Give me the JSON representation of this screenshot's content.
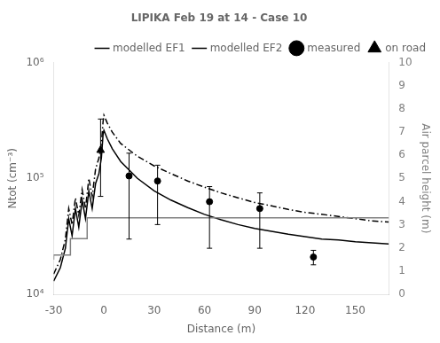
{
  "chart_data": {
    "type": "line",
    "title": "LIPIKA Feb 19 at 14 - Case 10",
    "x_label": "Distance (m)",
    "y_label": "Ntot (cm⁻³)",
    "y2_label": "Air parcel height (m)",
    "xlim": [
      -30,
      170
    ],
    "xticks": [
      -30,
      0,
      30,
      60,
      90,
      120,
      150
    ],
    "ylim": [
      10000,
      1000000
    ],
    "yticks": [
      {
        "value": 10000,
        "label": "10⁴"
      },
      {
        "value": 100000,
        "label": "10⁵"
      },
      {
        "value": 1000000,
        "label": "10⁶"
      }
    ],
    "y2lim": [
      0,
      10
    ],
    "y2ticks": [
      0,
      1,
      2,
      3,
      4,
      5,
      6,
      7,
      8,
      9,
      10
    ],
    "log": "y",
    "grid": false,
    "legend": "upper right",
    "series": [
      {
        "type": "line",
        "axis": "y2",
        "color": "#808080",
        "line_style": "solid",
        "x": [
          -30,
          -30,
          -20,
          -20,
          -10,
          -10,
          0,
          0,
          170
        ],
        "values": [
          1.5,
          1.7,
          1.7,
          2.4,
          2.4,
          3.3,
          3.3,
          3.3,
          3.3
        ]
      },
      {
        "name": "modelled EF1",
        "type": "line",
        "color": "#000000",
        "line_style": "solid",
        "x": [
          -30,
          -26,
          -23,
          -21,
          -19,
          -17,
          -15,
          -13,
          -11,
          -9,
          -7,
          -5,
          -3,
          -1.5,
          -0.5,
          0,
          2,
          5,
          10,
          20,
          30,
          40,
          50,
          60,
          70,
          80,
          90,
          100,
          110,
          120,
          130,
          140,
          150,
          160,
          170
        ],
        "values": [
          13000,
          17000,
          25000,
          45000,
          32000,
          55000,
          38000,
          65000,
          45000,
          78000,
          55000,
          90000,
          110000,
          150000,
          240000,
          260000,
          220000,
          180000,
          140000,
          100000,
          78000,
          65000,
          56000,
          49000,
          44000,
          40000,
          37000,
          35000,
          33000,
          31500,
          30000,
          29500,
          28500,
          27800,
          27200
        ]
      },
      {
        "name": "modelled EF2",
        "type": "line",
        "color": "#000000",
        "line_style": "dashdot",
        "x": [
          -30,
          -26,
          -23,
          -21,
          -19,
          -17,
          -15,
          -13,
          -11,
          -9,
          -7,
          -5,
          -3,
          -1.5,
          -0.5,
          0,
          2,
          5,
          10,
          20,
          30,
          40,
          50,
          60,
          70,
          80,
          90,
          100,
          110,
          120,
          130,
          140,
          150,
          160,
          170
        ],
        "values": [
          15000,
          20000,
          30000,
          55000,
          40000,
          68000,
          48000,
          80000,
          55000,
          100000,
          70000,
          120000,
          150000,
          200000,
          310000,
          350000,
          300000,
          250000,
          200000,
          155000,
          128000,
          110000,
          95000,
          84000,
          75000,
          68000,
          62000,
          58000,
          54000,
          51000,
          49000,
          47000,
          45000,
          43000,
          42000
        ]
      },
      {
        "name": "measured",
        "type": "scatter",
        "color": "#000000",
        "marker": "circle",
        "x": [
          15,
          32,
          63,
          93,
          125
        ],
        "values": [
          105000,
          95000,
          63000,
          55000,
          21000
        ],
        "yerr_low": [
          75000,
          55000,
          38000,
          30000,
          3000
        ],
        "yerr_high": [
          60000,
          35000,
          22000,
          20000,
          3000
        ]
      },
      {
        "name": "on road",
        "type": "scatter",
        "color": "#000000",
        "marker": "triangle",
        "x": [
          -2
        ],
        "values": [
          175000
        ],
        "yerr_low": [
          105000
        ],
        "yerr_high": [
          150000
        ]
      }
    ]
  }
}
